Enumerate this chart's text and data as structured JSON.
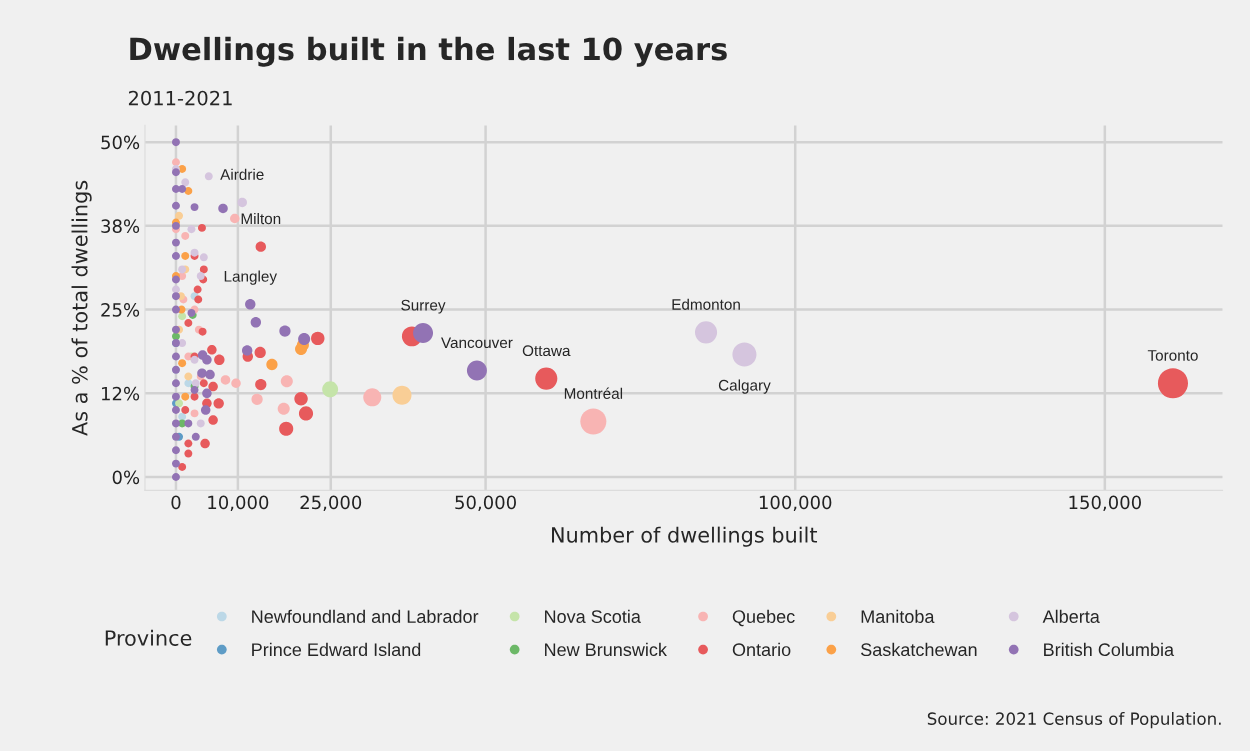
{
  "chart_data": {
    "type": "bubble",
    "title": "Dwellings built in the last 10 years",
    "subtitle": "2011-2021",
    "xlabel": "Number of dwellings built",
    "ylabel": "As a % of total dwellings",
    "legend_title": "Province",
    "xlim": [
      -5000,
      169000
    ],
    "xticks": [
      0,
      {
        "value": 10000,
        "label": "10,000"
      },
      {
        "value": 25000,
        "label": "25,000"
      },
      {
        "value": 50000,
        "label": "50,000"
      },
      {
        "value": 100000,
        "label": "100,000"
      },
      {
        "value": 150000,
        "label": "150,000"
      }
    ],
    "ylim": [
      -2,
      52.5
    ],
    "yticks": [
      {
        "value": 0,
        "label": "0%"
      },
      {
        "value": 12.5,
        "label": "12%"
      },
      {
        "value": 25,
        "label": "25%"
      },
      {
        "value": 37.5,
        "label": "38%"
      },
      {
        "value": 50,
        "label": "50%"
      }
    ],
    "grid": true,
    "legend": "bottom",
    "series": [
      {
        "name": "Newfoundland and Labrador",
        "color": "#bcd8e7",
        "x": [
          3000,
          2000,
          0,
          1000
        ],
        "values": [
          27,
          14,
          16,
          9
        ],
        "sizes": [
          0.07,
          0.07,
          0.07,
          0.07
        ]
      },
      {
        "name": "Prince Edward Island",
        "color": "#5e9cc6",
        "x": [
          0,
          0,
          500
        ],
        "values": [
          20,
          11,
          6
        ],
        "sizes": [
          0.07,
          0.07,
          0.07
        ]
      },
      {
        "name": "Nova Scotia",
        "color": "#c5e4a9",
        "x": [
          24900,
          2500,
          1000,
          500
        ],
        "values": [
          13.1,
          18,
          24,
          11
        ],
        "sizes": [
          0.28,
          0.07,
          0.07,
          0.07
        ]
      },
      {
        "name": "New Brunswick",
        "color": "#6cb867",
        "x": [
          2700,
          3000,
          1000,
          0
        ],
        "values": [
          24.2,
          13.5,
          8,
          21
        ],
        "sizes": [
          0.07,
          0.07,
          0.07,
          0.07
        ]
      },
      {
        "name": "Quebec",
        "color": "#f8b4b3",
        "x": [
          0,
          0,
          1500,
          9500,
          3000,
          3700,
          1200,
          4000,
          9700,
          17900,
          13100,
          17400,
          31700,
          67400,
          2000,
          8000,
          3000,
          1000
        ],
        "values": [
          47,
          37,
          36,
          38.6,
          25,
          22,
          26.5,
          15,
          14,
          14.3,
          11.6,
          10.2,
          11.9,
          8.3,
          18,
          14.5,
          9.5,
          30
        ],
        "sizes": [
          0.07,
          0.07,
          0.07,
          0.1,
          0.07,
          0.07,
          0.07,
          0.07,
          0.1,
          0.16,
          0.14,
          0.16,
          0.36,
          0.75,
          0.07,
          0.1,
          0.07,
          0.07
        ]
      },
      {
        "name": "Ontario",
        "color": "#e75a5c",
        "x": [
          4200,
          3000,
          4500,
          4400,
          3500,
          3600,
          2000,
          4300,
          5800,
          4500,
          3000,
          5000,
          6900,
          6000,
          2000,
          4700,
          2000,
          7000,
          6000,
          13700,
          22900,
          13600,
          11600,
          13700,
          20200,
          21000,
          17800,
          38100,
          59800,
          161000,
          1000,
          3000,
          1500
        ],
        "values": [
          37.2,
          33,
          31,
          29.5,
          28,
          26.5,
          23,
          21.7,
          19,
          14,
          12,
          11,
          11,
          8.5,
          5,
          5,
          3.5,
          17.5,
          13.5,
          34.4,
          20.7,
          18.6,
          18,
          13.8,
          11.7,
          9.5,
          7.2,
          21,
          14.7,
          14,
          1.5,
          18,
          10
        ],
        "sizes": [
          0.07,
          0.07,
          0.07,
          0.07,
          0.07,
          0.07,
          0.07,
          0.07,
          0.1,
          0.07,
          0.07,
          0.1,
          0.12,
          0.1,
          0.07,
          0.1,
          0.07,
          0.12,
          0.1,
          0.12,
          0.2,
          0.14,
          0.12,
          0.14,
          0.2,
          0.22,
          0.22,
          0.44,
          0.54,
          1,
          0.07,
          0.07,
          0.07
        ]
      },
      {
        "name": "Manitoba",
        "color": "#f9ce96",
        "x": [
          500,
          1500,
          800,
          36500,
          2000,
          500
        ],
        "values": [
          39,
          31,
          27,
          12.2,
          15,
          22
        ],
        "sizes": [
          0.07,
          0.07,
          0.07,
          0.4,
          0.07,
          0.07
        ]
      },
      {
        "name": "Saskatchewan",
        "color": "#fba148",
        "x": [
          1000,
          2000,
          0,
          1500,
          0,
          20500,
          20200,
          15500,
          900,
          1000,
          1500
        ],
        "values": [
          46,
          42.7,
          38,
          33,
          30,
          19.7,
          19.1,
          16.8,
          25,
          17,
          12
        ],
        "sizes": [
          0.07,
          0.07,
          0.07,
          0.07,
          0.07,
          0.16,
          0.16,
          0.14,
          0.07,
          0.07,
          0.07
        ]
      },
      {
        "name": "Alberta",
        "color": "#d5c5de",
        "x": [
          5300,
          10700,
          1500,
          2500,
          3000,
          4500,
          1000,
          4000,
          0,
          0,
          3200,
          3000,
          91800,
          85600,
          4000,
          1000
        ],
        "values": [
          44.9,
          41,
          44,
          37,
          33.5,
          32.8,
          31,
          30,
          46,
          28,
          14,
          17.5,
          18.3,
          21.6,
          8,
          20
        ],
        "sizes": [
          0.07,
          0.1,
          0.07,
          0.07,
          0.07,
          0.07,
          0.07,
          0.07,
          0.07,
          0.07,
          0.07,
          0.07,
          0.64,
          0.54,
          0.07,
          0.07
        ]
      },
      {
        "name": "British Columbia",
        "color": "#9273b4",
        "x": [
          0,
          0,
          0,
          0,
          0,
          0,
          0,
          0,
          0,
          0,
          0,
          0,
          0,
          0,
          0,
          0,
          0,
          0,
          0,
          0,
          0,
          0,
          1000,
          3000,
          2500,
          4300,
          5000,
          4200,
          5500,
          4800,
          3000,
          2000,
          7600,
          12000,
          12900,
          17600,
          20700,
          11500,
          48600,
          39900,
          5000,
          3200
        ],
        "values": [
          50,
          45.5,
          43,
          40.5,
          37.5,
          35,
          33,
          29.5,
          27,
          25,
          22,
          20,
          18,
          16,
          14,
          12,
          10,
          8,
          6,
          4,
          2,
          0,
          43,
          40.3,
          24.5,
          18.2,
          17.5,
          15.5,
          15.3,
          10,
          13,
          8,
          40.1,
          25.8,
          23.1,
          21.8,
          20.6,
          18.9,
          15.9,
          21.5,
          12.5,
          6
        ],
        "sizes": [
          0.07,
          0.07,
          0.07,
          0.07,
          0.07,
          0.07,
          0.07,
          0.07,
          0.07,
          0.07,
          0.07,
          0.07,
          0.07,
          0.07,
          0.07,
          0.07,
          0.07,
          0.07,
          0.07,
          0.07,
          0.07,
          0.07,
          0.07,
          0.07,
          0.07,
          0.1,
          0.1,
          0.1,
          0.1,
          0.1,
          0.07,
          0.07,
          0.1,
          0.12,
          0.12,
          0.14,
          0.16,
          0.12,
          0.44,
          0.44,
          0.1,
          0.07
        ]
      }
    ],
    "annotations": [
      {
        "text": "Airdrie",
        "x": 10700,
        "y": 41
      },
      {
        "text": "Milton",
        "x": 13700,
        "y": 34.4
      },
      {
        "text": "Langley",
        "x": 12000,
        "y": 25.8
      },
      {
        "text": "Surrey",
        "x": 39900,
        "y": 21.5
      },
      {
        "text": "Vancouver",
        "x": 48600,
        "y": 15.9
      },
      {
        "text": "Ottawa",
        "x": 59800,
        "y": 14.7
      },
      {
        "text": "Montréal",
        "x": 67400,
        "y": 8.3
      },
      {
        "text": "Edmonton",
        "x": 85600,
        "y": 21.6
      },
      {
        "text": "Calgary",
        "x": 91800,
        "y": 18.3
      },
      {
        "text": "Toronto",
        "x": 161000,
        "y": 14
      },
      "Source: 2021 Census of Population."
    ]
  }
}
